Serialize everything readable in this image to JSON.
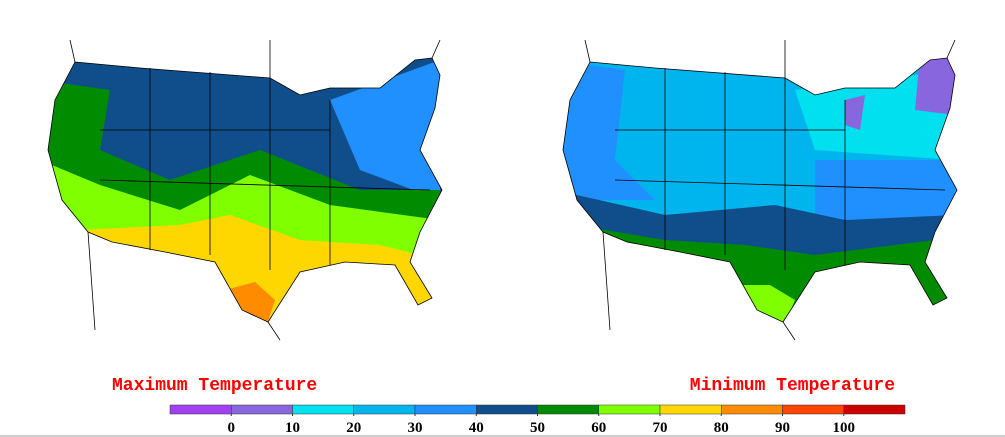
{
  "titles": {
    "left": "Maximum Temperature",
    "right": "Minimum Temperature"
  },
  "colorbar": {
    "colors": [
      "#a040f0",
      "#8866dd",
      "#00e0ee",
      "#00b4ee",
      "#2090ff",
      "#104e8b",
      "#008b00",
      "#7fff00",
      "#ffd700",
      "#ff8c00",
      "#ff4500",
      "#cd0000"
    ],
    "ticks": [
      0,
      10,
      20,
      30,
      40,
      50,
      60,
      70,
      80,
      90,
      100
    ]
  }
}
